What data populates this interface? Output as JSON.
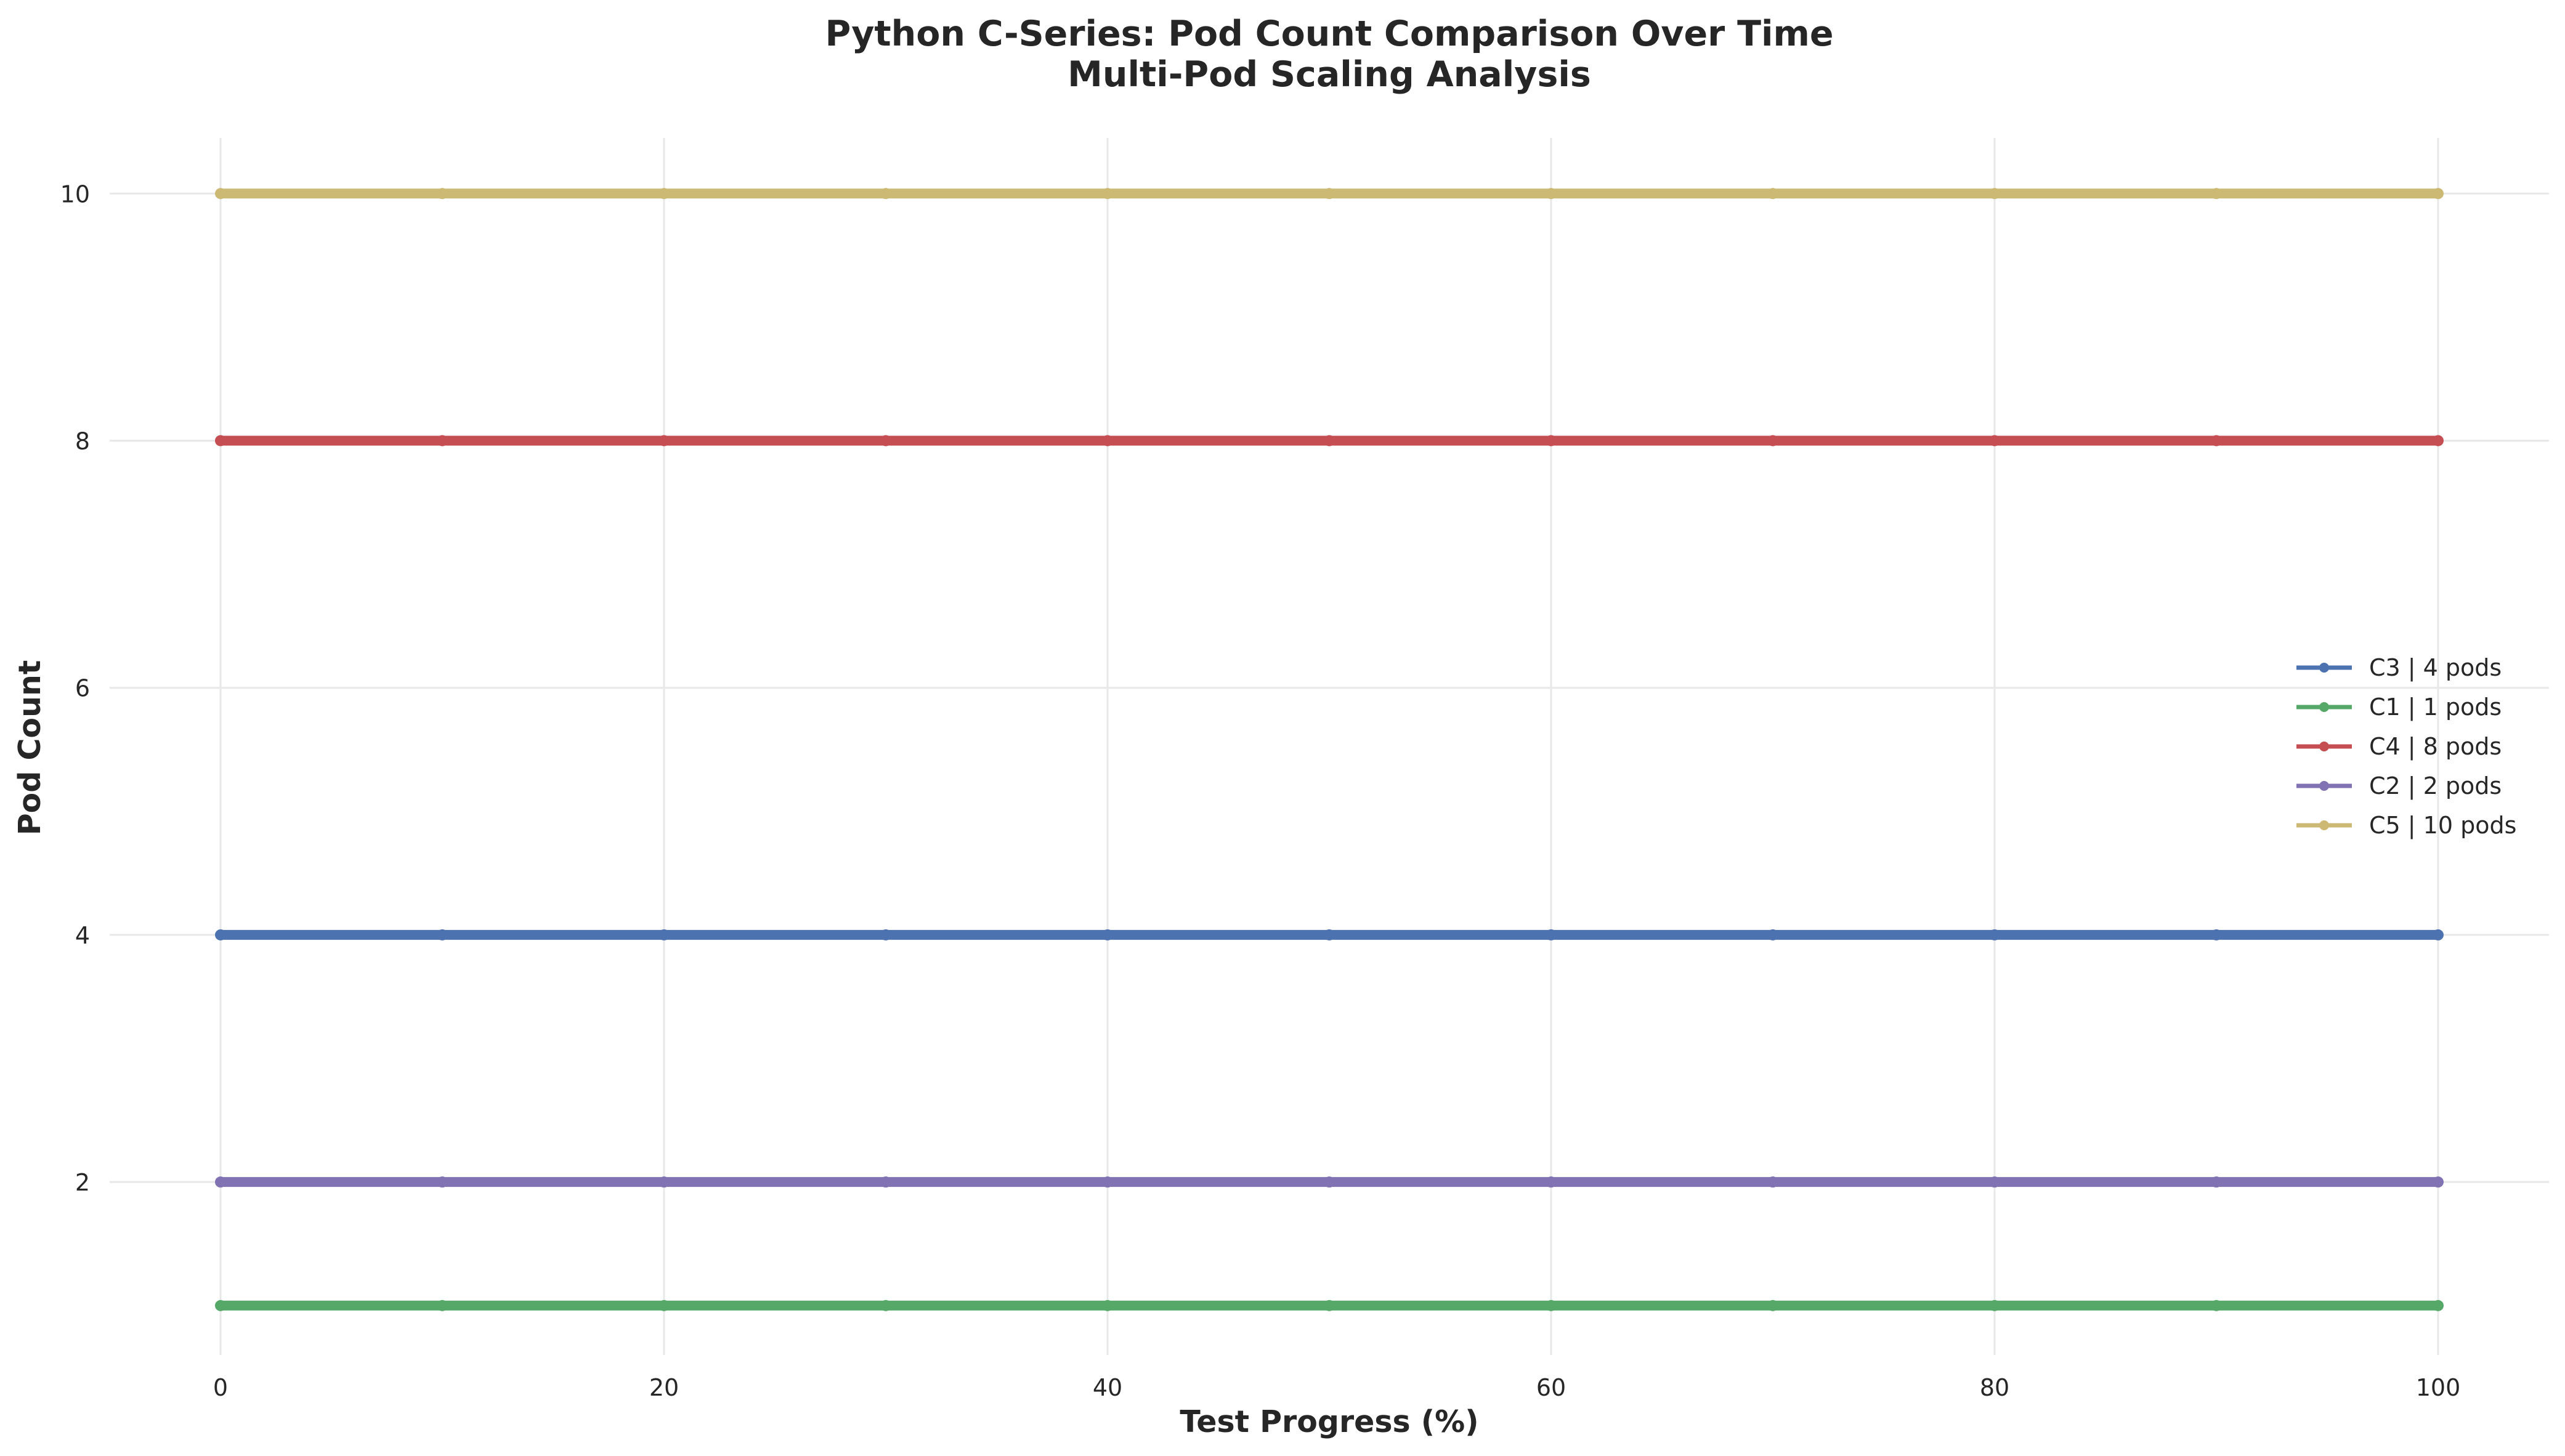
{
  "chart_data": {
    "type": "line",
    "title": "Python C-Series: Pod Count Comparison Over Time",
    "subtitle": "Multi-Pod Scaling Analysis",
    "xlabel": "Test Progress (%)",
    "ylabel": "Pod Count",
    "xlim": [
      -5,
      105
    ],
    "ylim": [
      0.6,
      10.45
    ],
    "xticks": [
      0,
      20,
      40,
      60,
      80,
      100
    ],
    "yticks": [
      2,
      4,
      6,
      8,
      10
    ],
    "grid": true,
    "legend_position": "center-right",
    "x": [
      0,
      10,
      20,
      30,
      40,
      50,
      60,
      70,
      80,
      90,
      100
    ],
    "series": [
      {
        "name": "C3 | 4 pods",
        "color": "#4c72b0",
        "values": [
          4,
          4,
          4,
          4,
          4,
          4,
          4,
          4,
          4,
          4,
          4
        ]
      },
      {
        "name": "C1 | 1 pods",
        "color": "#55a868",
        "values": [
          1,
          1,
          1,
          1,
          1,
          1,
          1,
          1,
          1,
          1,
          1
        ]
      },
      {
        "name": "C4 | 8 pods",
        "color": "#c44e52",
        "values": [
          8,
          8,
          8,
          8,
          8,
          8,
          8,
          8,
          8,
          8,
          8
        ]
      },
      {
        "name": "C2 | 2 pods",
        "color": "#8172b3",
        "values": [
          2,
          2,
          2,
          2,
          2,
          2,
          2,
          2,
          2,
          2,
          2
        ]
      },
      {
        "name": "C5 | 10 pods",
        "color": "#ccb974",
        "values": [
          10,
          10,
          10,
          10,
          10,
          10,
          10,
          10,
          10,
          10,
          10
        ]
      }
    ]
  }
}
